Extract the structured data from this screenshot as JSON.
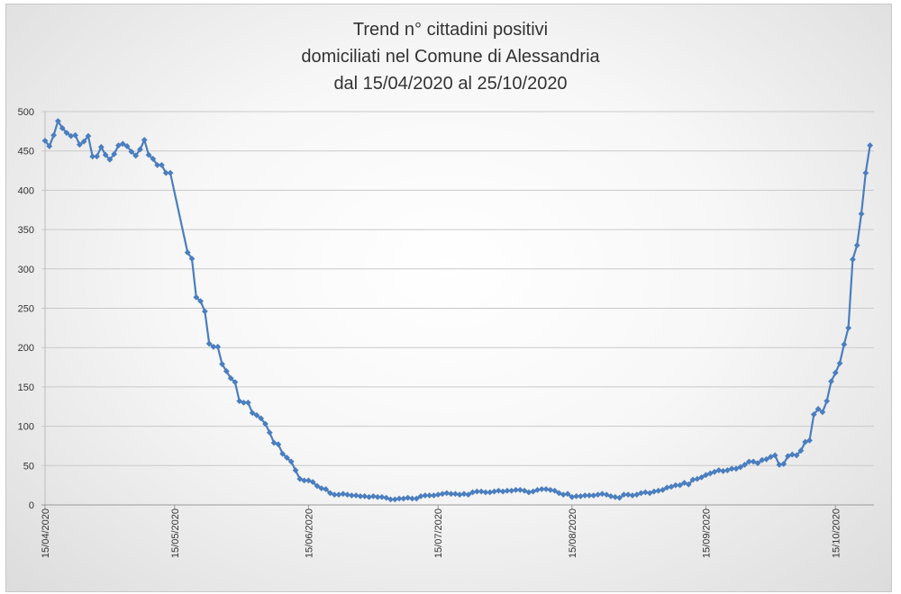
{
  "chart_data": {
    "type": "line",
    "title": "Trend n° cittadini positivi",
    "subtitle_lines": [
      "domiciliati nel Comune di Alessandria",
      "dal 15/04/2020 al 25/10/2020"
    ],
    "xlabel": "",
    "ylabel": "",
    "x_start_date": "15/04/2020",
    "ylim": [
      0,
      500
    ],
    "yticks": [
      0,
      50,
      100,
      150,
      200,
      250,
      300,
      350,
      400,
      450,
      500
    ],
    "xticks": [
      {
        "label": "15/04/2020",
        "day": 0
      },
      {
        "label": "15/05/2020",
        "day": 30
      },
      {
        "label": "15/06/2020",
        "day": 61
      },
      {
        "label": "15/07/2020",
        "day": 91
      },
      {
        "label": "15/08/2020",
        "day": 122
      },
      {
        "label": "15/09/2020",
        "day": 153
      },
      {
        "label": "15/10/2020",
        "day": 183
      }
    ],
    "grid": true,
    "legend": "none",
    "series": [
      {
        "color": "#4a7ebf",
        "points": [
          [
            0,
            463
          ],
          [
            1,
            456
          ],
          [
            2,
            470
          ],
          [
            3,
            488
          ],
          [
            4,
            479
          ],
          [
            5,
            473
          ],
          [
            6,
            469
          ],
          [
            7,
            470
          ],
          [
            8,
            458
          ],
          [
            9,
            462
          ],
          [
            10,
            469
          ],
          [
            11,
            443
          ],
          [
            12,
            443
          ],
          [
            13,
            455
          ],
          [
            14,
            445
          ],
          [
            15,
            439
          ],
          [
            16,
            446
          ],
          [
            17,
            457
          ],
          [
            18,
            459
          ],
          [
            19,
            456
          ],
          [
            20,
            449
          ],
          [
            21,
            444
          ],
          [
            22,
            452
          ],
          [
            23,
            464
          ],
          [
            24,
            445
          ],
          [
            25,
            440
          ],
          [
            26,
            432
          ],
          [
            27,
            432
          ],
          [
            28,
            422
          ],
          [
            29,
            422
          ],
          [
            33,
            321
          ],
          [
            34,
            313
          ],
          [
            35,
            264
          ],
          [
            36,
            259
          ],
          [
            37,
            246
          ],
          [
            38,
            205
          ],
          [
            39,
            201
          ],
          [
            40,
            201
          ],
          [
            41,
            179
          ],
          [
            42,
            170
          ],
          [
            43,
            161
          ],
          [
            44,
            156
          ],
          [
            45,
            132
          ],
          [
            46,
            130
          ],
          [
            47,
            130
          ],
          [
            48,
            117
          ],
          [
            49,
            114
          ],
          [
            50,
            110
          ],
          [
            51,
            103
          ],
          [
            52,
            92
          ],
          [
            53,
            79
          ],
          [
            54,
            77
          ],
          [
            55,
            65
          ],
          [
            56,
            60
          ],
          [
            57,
            55
          ],
          [
            58,
            44
          ],
          [
            59,
            33
          ],
          [
            60,
            31
          ],
          [
            61,
            31
          ],
          [
            62,
            29
          ],
          [
            63,
            24
          ],
          [
            64,
            21
          ],
          [
            65,
            20
          ],
          [
            66,
            15
          ],
          [
            67,
            13
          ],
          [
            68,
            13
          ],
          [
            69,
            14
          ],
          [
            70,
            13
          ],
          [
            71,
            12
          ],
          [
            72,
            12
          ],
          [
            73,
            11
          ],
          [
            74,
            11
          ],
          [
            75,
            10
          ],
          [
            76,
            11
          ],
          [
            77,
            10
          ],
          [
            78,
            10
          ],
          [
            79,
            9
          ],
          [
            80,
            7
          ],
          [
            81,
            7
          ],
          [
            82,
            8
          ],
          [
            83,
            8
          ],
          [
            84,
            9
          ],
          [
            85,
            8
          ],
          [
            86,
            8
          ],
          [
            87,
            11
          ],
          [
            88,
            12
          ],
          [
            89,
            12
          ],
          [
            90,
            12
          ],
          [
            91,
            13
          ],
          [
            92,
            14
          ],
          [
            93,
            15
          ],
          [
            94,
            14
          ],
          [
            95,
            14
          ],
          [
            96,
            13
          ],
          [
            97,
            14
          ],
          [
            98,
            13
          ],
          [
            99,
            16
          ],
          [
            100,
            17
          ],
          [
            101,
            17
          ],
          [
            102,
            16
          ],
          [
            103,
            16
          ],
          [
            104,
            17
          ],
          [
            105,
            18
          ],
          [
            106,
            17
          ],
          [
            107,
            18
          ],
          [
            108,
            18
          ],
          [
            109,
            19
          ],
          [
            110,
            19
          ],
          [
            111,
            18
          ],
          [
            112,
            16
          ],
          [
            113,
            17
          ],
          [
            114,
            19
          ],
          [
            115,
            20
          ],
          [
            116,
            20
          ],
          [
            117,
            19
          ],
          [
            118,
            18
          ],
          [
            119,
            15
          ],
          [
            120,
            13
          ],
          [
            121,
            14
          ],
          [
            122,
            10
          ],
          [
            123,
            11
          ],
          [
            124,
            11
          ],
          [
            125,
            12
          ],
          [
            126,
            12
          ],
          [
            127,
            12
          ],
          [
            128,
            13
          ],
          [
            129,
            14
          ],
          [
            130,
            13
          ],
          [
            131,
            11
          ],
          [
            132,
            10
          ],
          [
            133,
            9
          ],
          [
            134,
            13
          ],
          [
            135,
            13
          ],
          [
            136,
            12
          ],
          [
            137,
            13
          ],
          [
            138,
            15
          ],
          [
            139,
            16
          ],
          [
            140,
            15
          ],
          [
            141,
            17
          ],
          [
            142,
            18
          ],
          [
            143,
            19
          ],
          [
            144,
            22
          ],
          [
            145,
            23
          ],
          [
            146,
            25
          ],
          [
            147,
            25
          ],
          [
            148,
            28
          ],
          [
            149,
            26
          ],
          [
            150,
            32
          ],
          [
            151,
            33
          ],
          [
            152,
            35
          ],
          [
            153,
            38
          ],
          [
            154,
            40
          ],
          [
            155,
            42
          ],
          [
            156,
            44
          ],
          [
            157,
            43
          ],
          [
            158,
            44
          ],
          [
            159,
            46
          ],
          [
            160,
            46
          ],
          [
            161,
            48
          ],
          [
            162,
            51
          ],
          [
            163,
            55
          ],
          [
            164,
            55
          ],
          [
            165,
            53
          ],
          [
            166,
            57
          ],
          [
            167,
            58
          ],
          [
            168,
            61
          ],
          [
            169,
            63
          ],
          [
            170,
            51
          ],
          [
            171,
            52
          ],
          [
            172,
            62
          ],
          [
            173,
            64
          ],
          [
            174,
            63
          ],
          [
            175,
            69
          ],
          [
            176,
            80
          ],
          [
            177,
            82
          ],
          [
            178,
            115
          ],
          [
            179,
            122
          ],
          [
            180,
            118
          ],
          [
            181,
            132
          ],
          [
            182,
            157
          ],
          [
            183,
            168
          ],
          [
            184,
            180
          ],
          [
            185,
            204
          ],
          [
            186,
            225
          ],
          [
            187,
            312
          ],
          [
            188,
            330
          ],
          [
            189,
            370
          ],
          [
            190,
            422
          ],
          [
            191,
            457
          ]
        ]
      }
    ]
  }
}
